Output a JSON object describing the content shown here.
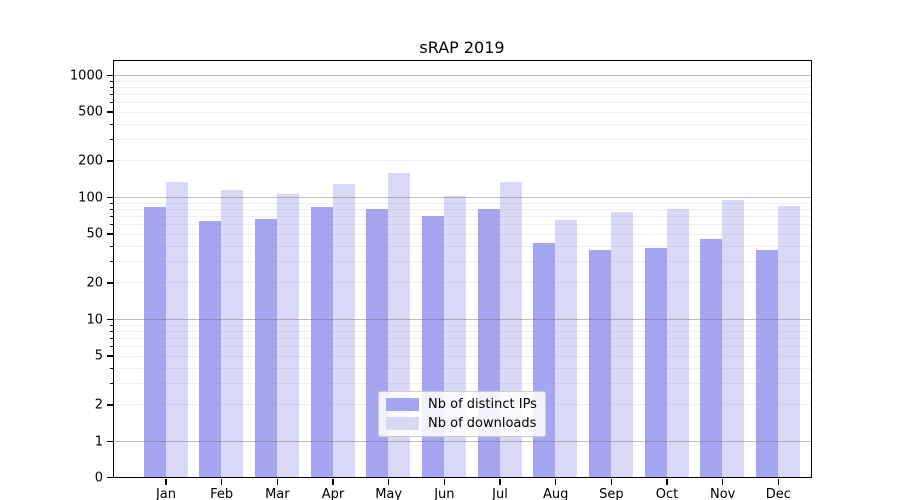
{
  "chart_data": {
    "type": "bar",
    "title": "sRAP 2019",
    "yscale": "symlog",
    "yticks": [
      0,
      1,
      2,
      5,
      10,
      20,
      50,
      100,
      200,
      500,
      1000
    ],
    "ylim": [
      0,
      1300
    ],
    "grid": true,
    "grid_over_bars": true,
    "legend_position": "lower center",
    "categories": [
      "Jan",
      "Feb",
      "Mar",
      "Apr",
      "May",
      "Jun",
      "Jul",
      "Aug",
      "Sep",
      "Oct",
      "Nov",
      "Dec"
    ],
    "year_label": "2019",
    "series": [
      {
        "name": "Nb of distinct IPs",
        "color": "#a5a5f2",
        "values": [
          83,
          64,
          66,
          83,
          79,
          70,
          79,
          42,
          37,
          38,
          45,
          37
        ]
      },
      {
        "name": "Nb of downloads",
        "color": "#d9d9f7",
        "values": [
          133,
          114,
          105,
          128,
          158,
          101,
          133,
          65,
          76,
          80,
          94,
          85
        ]
      }
    ]
  }
}
